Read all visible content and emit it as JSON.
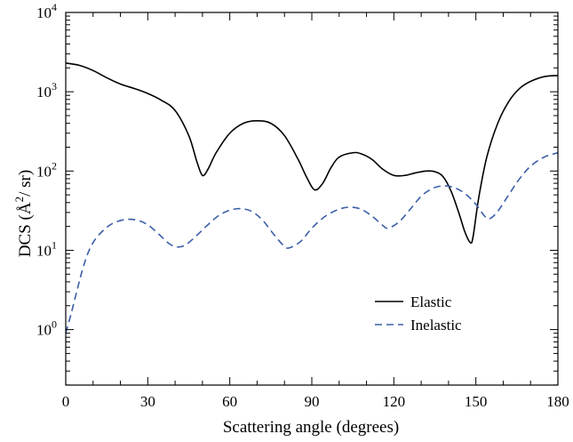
{
  "chart_data": {
    "type": "line",
    "xlabel": "Scattering angle (degrees)",
    "ylabel": {
      "prefix": "DCS (",
      "unit_base": "Å",
      "unit_exp": "2",
      "suffix": "/ sr)"
    },
    "xlim": [
      0,
      180
    ],
    "ylim_log10": [
      -0.7,
      4
    ],
    "y_scale": "log",
    "x_ticks": [
      0,
      30,
      60,
      90,
      120,
      150,
      180
    ],
    "x_tick_labels": [
      "0",
      "30",
      "60",
      "90",
      "120",
      "150",
      "180"
    ],
    "y_ticks": [
      {
        "base": "10",
        "exp": "0",
        "value": 1
      },
      {
        "base": "10",
        "exp": "1",
        "value": 10
      },
      {
        "base": "10",
        "exp": "2",
        "value": 100
      },
      {
        "base": "10",
        "exp": "3",
        "value": 1000
      },
      {
        "base": "10",
        "exp": "4",
        "value": 10000
      }
    ],
    "grid": false,
    "legend_position": "bottom-right",
    "series": [
      {
        "name": "Elastic",
        "color": "#000000",
        "dash": "solid",
        "x": [
          0,
          5,
          10,
          15,
          20,
          25,
          30,
          35,
          40,
          45,
          48,
          50,
          52,
          55,
          60,
          65,
          70,
          75,
          80,
          85,
          88,
          91,
          94,
          97,
          100,
          105,
          108,
          112,
          116,
          120,
          124,
          128,
          132,
          135,
          138,
          141,
          144,
          146,
          148,
          149,
          151,
          154,
          158,
          162,
          166,
          170,
          175,
          180
        ],
        "y": [
          2300,
          2150,
          1850,
          1500,
          1250,
          1100,
          950,
          780,
          580,
          280,
          130,
          88,
          105,
          170,
          300,
          400,
          430,
          400,
          280,
          140,
          85,
          58,
          70,
          110,
          150,
          170,
          165,
          140,
          105,
          88,
          88,
          95,
          100,
          98,
          85,
          55,
          28,
          17,
          12.5,
          15,
          45,
          150,
          400,
          750,
          1100,
          1350,
          1550,
          1600
        ]
      },
      {
        "name": "Inelastic",
        "color": "#3a5ea8",
        "dash": "dashed",
        "x": [
          0,
          2,
          4,
          6,
          8,
          10,
          12,
          15,
          18,
          22,
          26,
          30,
          34,
          38,
          41,
          44,
          48,
          52,
          56,
          60,
          64,
          68,
          72,
          76,
          80,
          82,
          86,
          90,
          95,
          100,
          104,
          108,
          112,
          116,
          118,
          122,
          126,
          130,
          134,
          138,
          142,
          146,
          150,
          153,
          155,
          158,
          162,
          166,
          170,
          175,
          180
        ],
        "y": [
          0.9,
          1.6,
          3.0,
          5.5,
          9.0,
          12.5,
          15.5,
          19.5,
          22.5,
          24.5,
          24.0,
          21.0,
          16.0,
          12.0,
          11.0,
          11.8,
          15.5,
          21.0,
          27.5,
          32.0,
          33.5,
          31.0,
          24.0,
          16.0,
          11.2,
          10.8,
          13.0,
          19.0,
          27.0,
          33.0,
          35.0,
          33.0,
          27.0,
          20.5,
          19.0,
          23.0,
          33.0,
          48.0,
          60.0,
          65.0,
          62.0,
          52.0,
          38.0,
          27.5,
          25.0,
          31.0,
          50.0,
          80.0,
          115.0,
          150.0,
          170.0
        ]
      }
    ]
  }
}
